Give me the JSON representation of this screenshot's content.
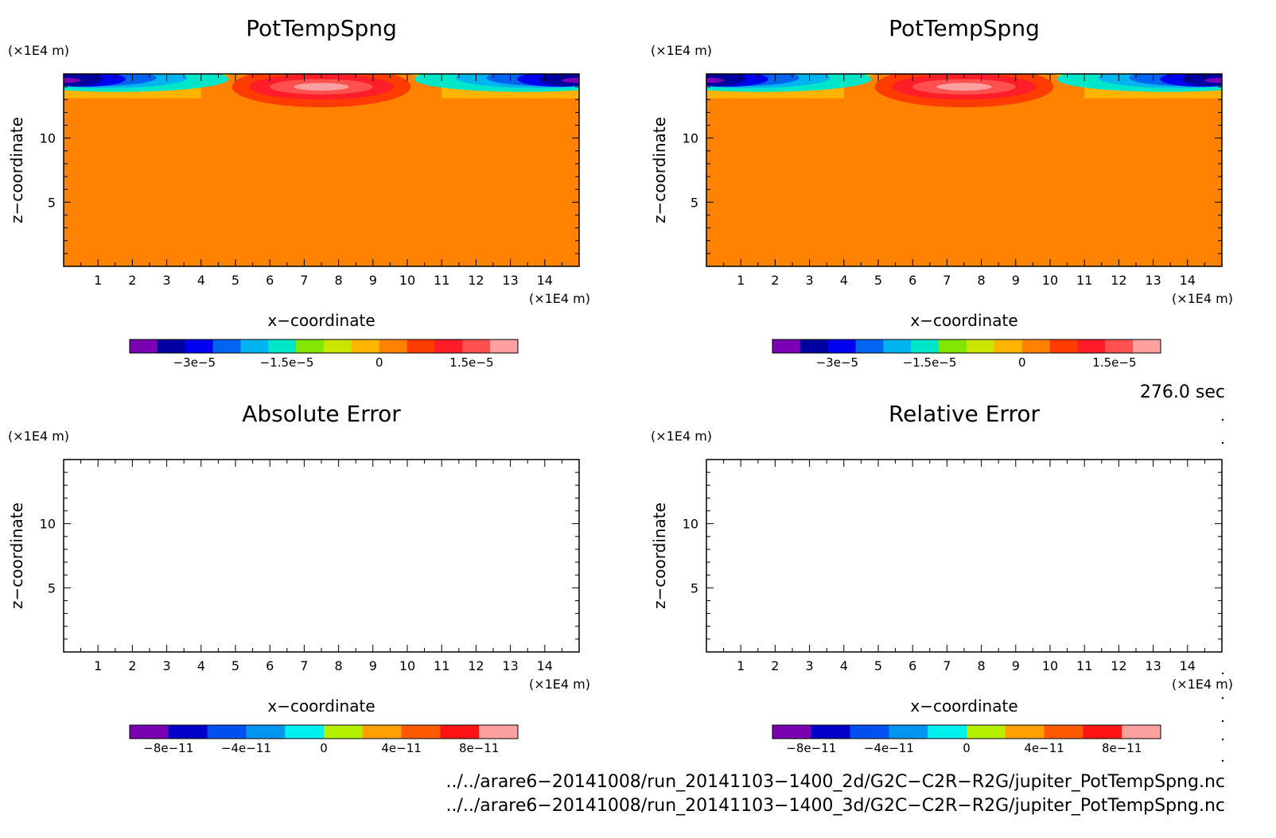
{
  "chart_data": [
    {
      "type": "heatmap",
      "title": "PotTempSpng",
      "xlabel": "x−coordinate",
      "ylabel": "z−coordinate",
      "x_unit": "(×1E4 m)",
      "y_unit": "(×1E4 m)",
      "xlim": [
        0,
        15
      ],
      "ylim": [
        0,
        15
      ],
      "xticks": [
        "1",
        "2",
        "3",
        "4",
        "5",
        "6",
        "7",
        "8",
        "9",
        "10",
        "11",
        "12",
        "13",
        "14"
      ],
      "yticks": [
        "5",
        "10"
      ],
      "colorbar": {
        "colors": [
          "#7a00b4",
          "#0000a0",
          "#0000f0",
          "#0064f0",
          "#00b4f0",
          "#00e6c8",
          "#82e600",
          "#c8e600",
          "#ffb400",
          "#ff8200",
          "#ff3c00",
          "#ff1e28",
          "#ff5050",
          "#ffa0a0"
        ],
        "labels": [
          "−3e−5",
          "−1.5e−5",
          "0",
          "1.5e−5"
        ],
        "label_values": [
          -3e-05,
          -1.5e-05,
          0,
          1.5e-05
        ],
        "range": [
          -4.05e-05,
          2.25e-05
        ]
      },
      "field": "negative sponge values near top corners, positive maximum centered near x=7.5, z=14; zero elsewhere"
    },
    {
      "type": "heatmap",
      "title": "PotTempSpng",
      "xlabel": "x−coordinate",
      "ylabel": "z−coordinate",
      "x_unit": "(×1E4 m)",
      "y_unit": "(×1E4 m)",
      "xlim": [
        0,
        15
      ],
      "ylim": [
        0,
        15
      ],
      "xticks": [
        "1",
        "2",
        "3",
        "4",
        "5",
        "6",
        "7",
        "8",
        "9",
        "10",
        "11",
        "12",
        "13",
        "14"
      ],
      "yticks": [
        "5",
        "10"
      ],
      "colorbar": {
        "colors": [
          "#7a00b4",
          "#0000a0",
          "#0000f0",
          "#0064f0",
          "#00b4f0",
          "#00e6c8",
          "#82e600",
          "#c8e600",
          "#ffb400",
          "#ff8200",
          "#ff3c00",
          "#ff1e28",
          "#ff5050",
          "#ffa0a0"
        ],
        "labels": [
          "−3e−5",
          "−1.5e−5",
          "0",
          "1.5e−5"
        ],
        "label_values": [
          -3e-05,
          -1.5e-05,
          0,
          1.5e-05
        ],
        "range": [
          -4.05e-05,
          2.25e-05
        ]
      },
      "field": "identical to first panel"
    },
    {
      "type": "heatmap",
      "title": "Absolute Error",
      "xlabel": "x−coordinate",
      "ylabel": "z−coordinate",
      "x_unit": "(×1E4 m)",
      "y_unit": "(×1E4 m)",
      "xlim": [
        0,
        15
      ],
      "ylim": [
        0,
        15
      ],
      "xticks": [
        "1",
        "2",
        "3",
        "4",
        "5",
        "6",
        "7",
        "8",
        "9",
        "10",
        "11",
        "12",
        "13",
        "14"
      ],
      "yticks": [
        "5",
        "10"
      ],
      "colorbar": {
        "colors": [
          "#7a00b4",
          "#0000c8",
          "#0050f0",
          "#0096f0",
          "#00f0f0",
          "#b4f000",
          "#ffa000",
          "#ff5a00",
          "#ff1414",
          "#ffa0a0"
        ],
        "labels": [
          "−8e−11",
          "−4e−11",
          "0",
          "4e−11",
          "8e−11"
        ],
        "label_values": [
          -8e-11,
          -4e-11,
          0,
          4e-11,
          8e-11
        ],
        "range": [
          -1e-10,
          1e-10
        ]
      },
      "field": "empty"
    },
    {
      "type": "heatmap",
      "title": "Relative Error",
      "xlabel": "x−coordinate",
      "ylabel": "z−coordinate",
      "x_unit": "(×1E4 m)",
      "y_unit": "(×1E4 m)",
      "xlim": [
        0,
        15
      ],
      "ylim": [
        0,
        15
      ],
      "xticks": [
        "1",
        "2",
        "3",
        "4",
        "5",
        "6",
        "7",
        "8",
        "9",
        "10",
        "11",
        "12",
        "13",
        "14"
      ],
      "yticks": [
        "5",
        "10"
      ],
      "colorbar": {
        "colors": [
          "#7a00b4",
          "#0000c8",
          "#0050f0",
          "#0096f0",
          "#00f0f0",
          "#b4f000",
          "#ffa000",
          "#ff5a00",
          "#ff1414",
          "#ffa0a0"
        ],
        "labels": [
          "−8e−11",
          "−4e−11",
          "0",
          "4e−11",
          "8e−11"
        ],
        "label_values": [
          -8e-11,
          -4e-11,
          0,
          4e-11,
          8e-11
        ],
        "range": [
          -1e-10,
          1e-10
        ]
      },
      "field": "empty"
    }
  ],
  "time_label": "276.0 sec",
  "file_paths": [
    "../../arare6−20141008/run_20141103−1400_2d/G2C−C2R−R2G/jupiter_PotTempSpng.nc",
    "../../arare6−20141008/run_20141103−1400_3d/G2C−C2R−R2G/jupiter_PotTempSpng.nc"
  ]
}
